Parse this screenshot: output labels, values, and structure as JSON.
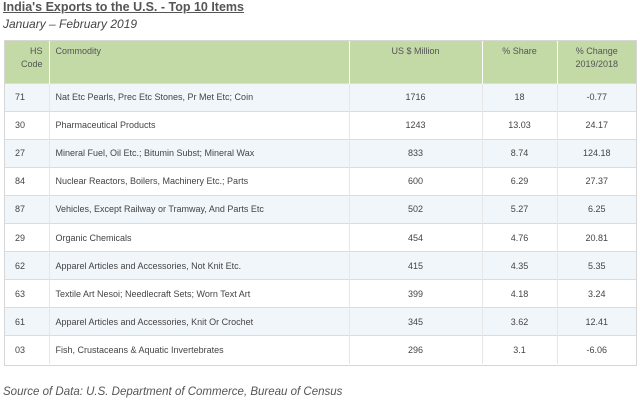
{
  "title": "India's Exports to the U.S. - Top 10 Items",
  "subtitle": "January – February 2019",
  "table": {
    "headers": {
      "code_line1": "HS",
      "code_line2": "Code",
      "commodity": "Commodity",
      "usd": "US $ Million",
      "share": "% Share",
      "change_line1": "% Change",
      "change_line2": "2019/2018"
    },
    "rows": [
      {
        "code": "71",
        "commodity": "Nat Etc Pearls, Prec Etc Stones, Pr Met Etc; Coin",
        "usd": "1716",
        "share": "18",
        "change": "-0.77"
      },
      {
        "code": "30",
        "commodity": "Pharmaceutical Products",
        "usd": "1243",
        "share": "13.03",
        "change": "24.17"
      },
      {
        "code": "27",
        "commodity": "Mineral Fuel, Oil Etc.; Bitumin Subst; Mineral Wax",
        "usd": "833",
        "share": "8.74",
        "change": "124.18"
      },
      {
        "code": "84",
        "commodity": "Nuclear Reactors, Boilers, Machinery Etc.; Parts",
        "usd": "600",
        "share": "6.29",
        "change": "27.37"
      },
      {
        "code": "87",
        "commodity": "Vehicles, Except Railway or Tramway, And Parts Etc",
        "usd": "502",
        "share": "5.27",
        "change": "6.25"
      },
      {
        "code": "29",
        "commodity": "Organic Chemicals",
        "usd": "454",
        "share": "4.76",
        "change": "20.81"
      },
      {
        "code": "62",
        "commodity": "Apparel Articles and Accessories, Not Knit Etc.",
        "usd": "415",
        "share": "4.35",
        "change": "5.35"
      },
      {
        "code": "63",
        "commodity": "Textile Art Nesoi; Needlecraft Sets; Worn Text Art",
        "usd": "399",
        "share": "4.18",
        "change": "3.24"
      },
      {
        "code": "61",
        "commodity": "Apparel Articles and Accessories, Knit Or Crochet",
        "usd": "345",
        "share": "3.62",
        "change": "12.41"
      },
      {
        "code": "03",
        "commodity": "Fish, Crustaceans & Aquatic Invertebrates",
        "usd": "296",
        "share": "3.1",
        "change": "-6.06"
      }
    ]
  },
  "source": "Source of Data: U.S. Department of Commerce, Bureau of Census",
  "colors": {
    "header_bg": "#c3d9a6",
    "row_alt_bg": "#f1f6fb"
  }
}
